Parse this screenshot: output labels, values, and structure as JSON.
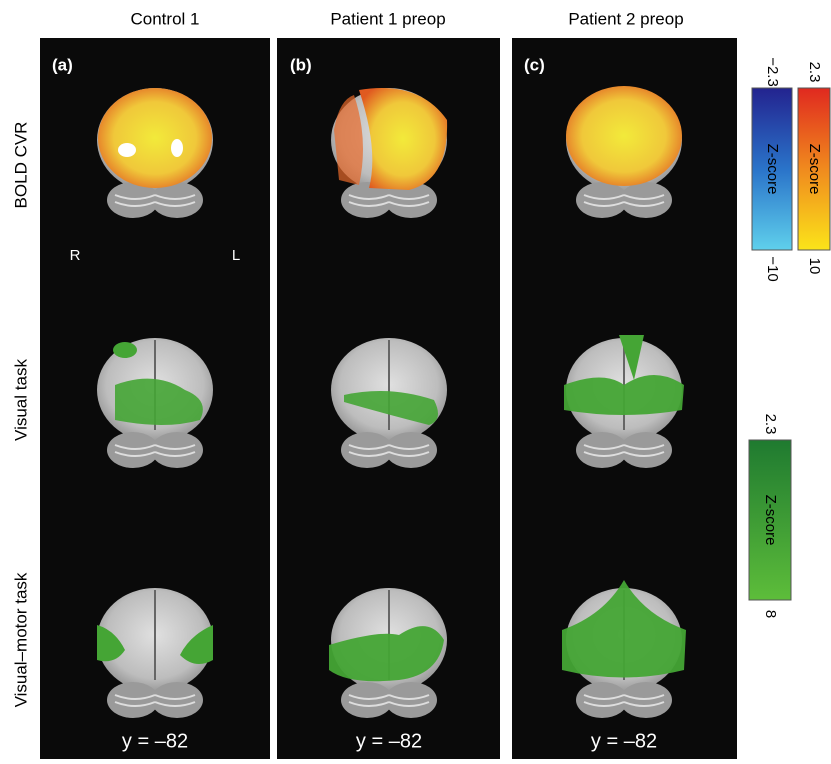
{
  "columns": [
    "Control 1",
    "Patient 1 preop",
    "Patient 2 preop"
  ],
  "rows": [
    "BOLD CVR",
    "Visual task",
    "Visual–motor task"
  ],
  "panels": [
    {
      "letter": "(a)",
      "coordinate": "y = –82"
    },
    {
      "letter": "(b)",
      "coordinate": "y = –82"
    },
    {
      "letter": "(c)",
      "coordinate": "y = –82"
    }
  ],
  "orientation": {
    "right": "R",
    "left": "L"
  },
  "colorbars": [
    {
      "top": "−2.3",
      "bottom": "−10",
      "label": "Z-score"
    },
    {
      "top": "2.3",
      "bottom": "10",
      "label": "Z-score"
    },
    {
      "top": "2.3",
      "bottom": "8",
      "label": "Z-score"
    }
  ]
}
